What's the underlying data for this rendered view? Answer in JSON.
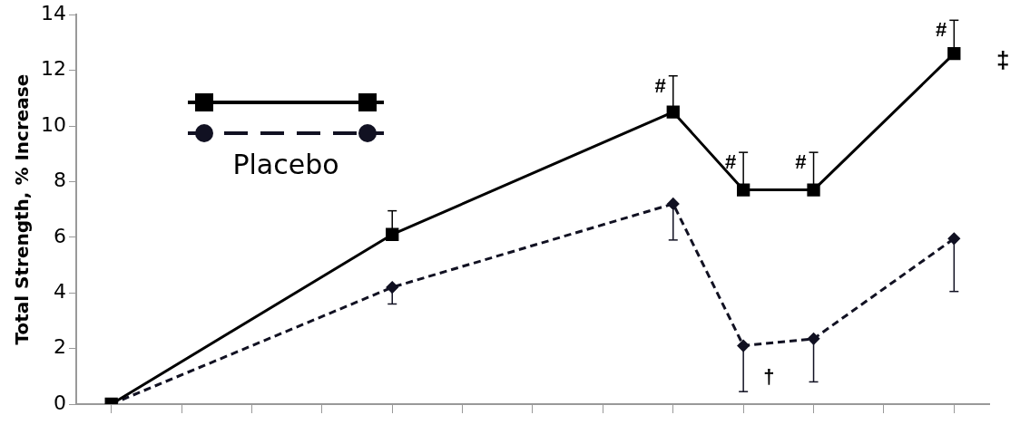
{
  "chart_data": {
    "type": "line",
    "ylabel": "Total Strength, % Increase",
    "categories": [
      null,
      null,
      null,
      null,
      null,
      null,
      null,
      null,
      null,
      null,
      null,
      null,
      null
    ],
    "ylim": [
      0,
      14
    ],
    "yticks": [
      0,
      2,
      4,
      6,
      8,
      10,
      12,
      14
    ],
    "tick_labels": "y",
    "legend": "top left",
    "series": [
      {
        "color": "#000000",
        "marker": "square",
        "line_style": "solid",
        "values": [
          0,
          null,
          null,
          null,
          6.1,
          null,
          null,
          null,
          10.5,
          7.7,
          7.7,
          null,
          12.6
        ],
        "errors": [
          null,
          null,
          null,
          null,
          [
            6.1,
            6.95
          ],
          null,
          null,
          null,
          [
            10.5,
            11.8
          ],
          [
            7.7,
            9.05
          ],
          [
            7.7,
            9.05
          ],
          null,
          [
            12.6,
            13.8
          ]
        ],
        "value_labels": [
          null,
          null,
          null,
          null,
          null,
          null,
          null,
          null,
          "#",
          "#",
          "#",
          null,
          "#"
        ]
      },
      {
        "name": "Placebo",
        "color": "#111122",
        "marker": "diamond",
        "line_style": "dashed",
        "values": [
          0,
          null,
          null,
          null,
          4.2,
          null,
          null,
          null,
          7.2,
          2.1,
          2.35,
          null,
          5.95
        ],
        "errors": [
          null,
          null,
          null,
          null,
          [
            3.6,
            4.2
          ],
          null,
          null,
          null,
          [
            5.9,
            7.2
          ],
          [
            0.45,
            2.1
          ],
          [
            0.8,
            2.35
          ],
          null,
          [
            4.05,
            5.95
          ]
        ],
        "value_labels": [
          null,
          null,
          null,
          null,
          null,
          null,
          null,
          null,
          null,
          "†",
          null,
          null,
          null
        ]
      }
    ],
    "annotations": [
      "‡"
    ]
  }
}
